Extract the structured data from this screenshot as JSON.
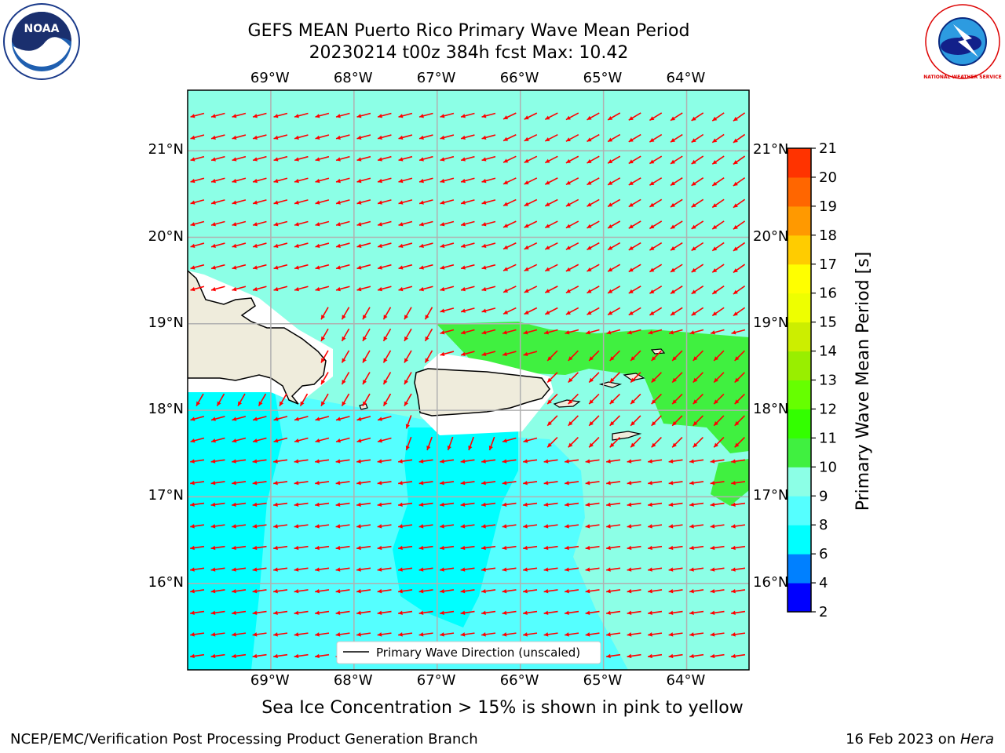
{
  "header": {
    "title_line1": "GEFS MEAN Puerto Rico Primary Wave Mean Period",
    "title_line2": "20230214 t00z 384h fcst   Max: 10.42"
  },
  "logos": {
    "left": {
      "name": "noaa-logo",
      "text": "NOAA"
    },
    "right": {
      "name": "nws-logo",
      "text": "NATIONAL WEATHER SERVICE"
    }
  },
  "map": {
    "lon_labels": [
      "69°W",
      "68°W",
      "67°W",
      "66°W",
      "65°W",
      "64°W"
    ],
    "lat_labels": [
      "21°N",
      "20°N",
      "19°N",
      "18°N",
      "17°N",
      "16°N"
    ],
    "legend_label": "Primary Wave Direction (unscaled)",
    "colors": {
      "land": "#efecdc",
      "period_5": "#00ffff",
      "period_8": "#55ffff",
      "period_9": "#8cffe6",
      "period_10": "#40f040",
      "arrow": "#ff0000"
    }
  },
  "colorbar": {
    "label": "Primary Wave Mean Period [s]",
    "ticks": [
      "2",
      "4",
      "6",
      "8",
      "9",
      "10",
      "11",
      "12",
      "13",
      "14",
      "15",
      "16",
      "17",
      "18",
      "19",
      "20",
      "21"
    ],
    "colors": [
      "#0000ff",
      "#0080ff",
      "#00ffff",
      "#55ffff",
      "#8cffe6",
      "#40f040",
      "#33ff00",
      "#66ff00",
      "#99ee00",
      "#ccee00",
      "#eeff00",
      "#ffff00",
      "#ffcc00",
      "#ff9900",
      "#ff6600",
      "#ff3300",
      "#ff0000"
    ]
  },
  "note": "Sea Ice Concentration > 15% is shown in pink to yellow",
  "footer": {
    "left": "NCEP/EMC/Verification Post Processing Product Generation Branch",
    "right_date": "16 Feb 2023 on ",
    "right_machine": "Hera"
  }
}
